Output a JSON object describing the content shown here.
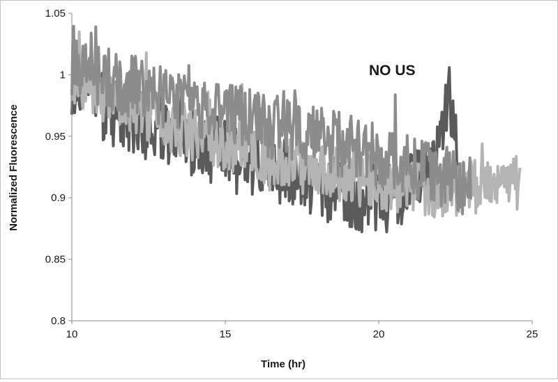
{
  "chart_data": {
    "type": "line",
    "title": "",
    "annotation": "NO US",
    "xlabel": "Time (hr)",
    "ylabel": "Normalized Fluorescence",
    "xlim": [
      10,
      25
    ],
    "ylim": [
      0.8,
      1.05
    ],
    "x_ticks": [
      10,
      15,
      20,
      25
    ],
    "y_ticks": [
      0.8,
      0.85,
      0.9,
      0.95,
      1,
      1.05
    ],
    "x_tick_labels": [
      "10",
      "15",
      "20",
      "25"
    ],
    "y_tick_labels": [
      "0.8",
      "0.85",
      "0.9",
      "0.95",
      "1",
      "1.05"
    ],
    "grid": false,
    "legend": "none",
    "series": [
      {
        "color": "#5a5a5a",
        "x": [
          10.0,
          10.5,
          11.0,
          11.5,
          12.0,
          12.5,
          13.0,
          13.5,
          14.0,
          14.5,
          15.0,
          15.5,
          16.0,
          16.5,
          17.0,
          17.5,
          18.0,
          18.5,
          19.0,
          19.5,
          20.0,
          20.5,
          21.0,
          21.5,
          22.0,
          22.3,
          22.6
        ],
        "y": [
          0.995,
          0.99,
          0.975,
          0.968,
          0.962,
          0.958,
          0.952,
          0.948,
          0.944,
          0.94,
          0.935,
          0.93,
          0.928,
          0.925,
          0.92,
          0.915,
          0.91,
          0.906,
          0.903,
          0.9,
          0.898,
          0.9,
          0.908,
          0.92,
          0.94,
          0.98,
          0.93
        ]
      },
      {
        "color": "#b4b4b4",
        "x": [
          10.0,
          10.5,
          11.0,
          11.5,
          12.0,
          12.5,
          13.0,
          13.5,
          14.0,
          14.5,
          15.0,
          15.5,
          16.0,
          16.5,
          17.0,
          17.5,
          18.0,
          18.5,
          19.0,
          19.5,
          20.0,
          20.5,
          21.0,
          21.5,
          22.0,
          22.5,
          23.0,
          23.5,
          24.0,
          24.6
        ],
        "y": [
          1.0,
          0.99,
          0.982,
          0.977,
          0.972,
          0.966,
          0.962,
          0.956,
          0.952,
          0.947,
          0.944,
          0.94,
          0.936,
          0.932,
          0.928,
          0.925,
          0.922,
          0.92,
          0.917,
          0.914,
          0.912,
          0.91,
          0.908,
          0.906,
          0.904,
          0.906,
          0.908,
          0.91,
          0.912,
          0.912
        ]
      },
      {
        "color": "#8c8c8c",
        "x": [
          10.0,
          10.5,
          11.0,
          11.5,
          12.0,
          12.5,
          13.0,
          13.5,
          14.0,
          14.5,
          15.0,
          15.5,
          16.0,
          16.5,
          17.0,
          17.5,
          18.0,
          18.5,
          19.0,
          19.5,
          20.0,
          20.5,
          21.0,
          21.5,
          22.0,
          22.5,
          23.0
        ],
        "y": [
          1.008,
          1.004,
          0.998,
          0.994,
          0.99,
          0.985,
          0.982,
          0.978,
          0.975,
          0.972,
          0.968,
          0.965,
          0.962,
          0.958,
          0.955,
          0.952,
          0.948,
          0.945,
          0.942,
          0.938,
          0.935,
          0.93,
          0.926,
          0.922,
          0.918,
          0.914,
          0.91
        ]
      }
    ]
  }
}
